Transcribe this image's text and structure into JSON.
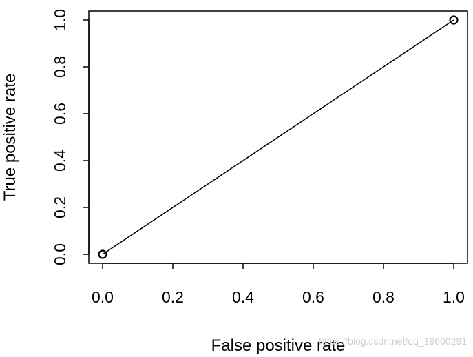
{
  "chart_data": {
    "type": "line",
    "title": "",
    "xlabel": "False positive rate",
    "ylabel": "True positive rate",
    "xlim": [
      0,
      1
    ],
    "ylim": [
      0,
      1
    ],
    "x_ticks": [
      "0.0",
      "0.2",
      "0.4",
      "0.6",
      "0.8",
      "1.0"
    ],
    "y_ticks": [
      "0.0",
      "0.2",
      "0.4",
      "0.6",
      "0.8",
      "1.0"
    ],
    "grid": false,
    "markers": "open-circle",
    "series": [
      {
        "x": [
          0,
          1
        ],
        "y": [
          0,
          1
        ]
      }
    ]
  },
  "watermark": "https://blog.csdn.net/qq_19600291",
  "colors": {
    "line": "#000000",
    "frame": "#000000",
    "background": "#ffffff"
  }
}
